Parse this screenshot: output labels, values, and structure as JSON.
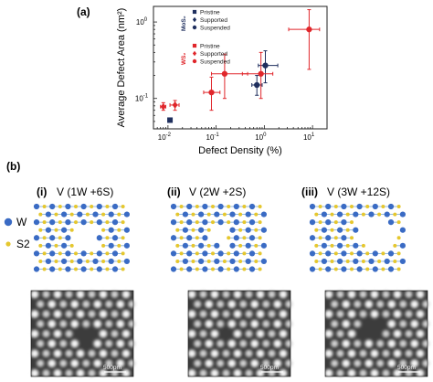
{
  "panel_a": {
    "label": "(a)",
    "chart_data": {
      "type": "scatter",
      "title": "",
      "xlabel": "Defect Density (%)",
      "ylabel": "Average Defect Area (nm²)",
      "xscale": "log",
      "yscale": "log",
      "xlim": [
        0.005,
        20
      ],
      "ylim": [
        0.04,
        1.6
      ],
      "x_ticks": [
        {
          "v": 0.01,
          "b": "10",
          "e": "-2"
        },
        {
          "v": 0.1,
          "b": "10",
          "e": "-1"
        },
        {
          "v": 1,
          "b": "10",
          "e": "0"
        },
        {
          "v": 10,
          "b": "10",
          "e": "1"
        }
      ],
      "y_ticks": [
        {
          "v": 0.1,
          "b": "10",
          "e": "-1"
        },
        {
          "v": 1,
          "b": "10",
          "e": "0"
        }
      ],
      "legend_groups": [
        {
          "material": "MoS₂",
          "color": "#1f2f5e",
          "entries": [
            {
              "label": "Pristine",
              "marker": "square"
            },
            {
              "label": "Supported",
              "marker": "diamond"
            },
            {
              "label": "Suspended",
              "marker": "circle"
            }
          ]
        },
        {
          "material": "WS₂",
          "color": "#e0262b",
          "entries": [
            {
              "label": "Pristine",
              "marker": "square"
            },
            {
              "label": "Supported",
              "marker": "diamond"
            },
            {
              "label": "Suspended",
              "marker": "circle"
            }
          ]
        }
      ],
      "series": [
        {
          "name": "MoS₂ Pristine",
          "color": "#1f2f5e",
          "marker": "square",
          "points": [
            {
              "x": 0.011,
              "y": 0.052
            }
          ]
        },
        {
          "name": "MoS₂ Suspended",
          "color": "#1f2f5e",
          "marker": "circle",
          "points": [
            {
              "x": 0.7,
              "y": 0.15,
              "xerr": [
                0.55,
                0.9
              ],
              "yerr": [
                0.11,
                0.2
              ]
            },
            {
              "x": 1.05,
              "y": 0.27,
              "xerr": [
                0.75,
                1.9
              ],
              "yerr": [
                0.16,
                0.42
              ]
            }
          ]
        },
        {
          "name": "WS₂ Supported",
          "color": "#e0262b",
          "marker": "diamond",
          "points": [
            {
              "x": 0.008,
              "y": 0.078,
              "xerr": [
                0.007,
                0.009
              ],
              "yerr": [
                0.07,
                0.088
              ]
            },
            {
              "x": 0.014,
              "y": 0.082,
              "xerr": [
                0.011,
                0.017
              ],
              "yerr": [
                0.07,
                0.094
              ]
            }
          ]
        },
        {
          "name": "WS₂ Suspended",
          "color": "#e0262b",
          "marker": "circle",
          "points": [
            {
              "x": 0.08,
              "y": 0.12,
              "xerr": [
                0.055,
                0.12
              ],
              "yerr": [
                0.07,
                0.19
              ]
            },
            {
              "x": 0.15,
              "y": 0.21,
              "xerr": [
                0.08,
                0.45
              ],
              "yerr": [
                0.1,
                0.38
              ]
            },
            {
              "x": 0.85,
              "y": 0.21,
              "xerr": [
                0.35,
                1.5
              ],
              "yerr": [
                0.1,
                0.4
              ]
            },
            {
              "x": 8.5,
              "y": 0.8,
              "xerr": [
                3.2,
                14
              ],
              "yerr": [
                0.24,
                1.45
              ]
            }
          ]
        }
      ]
    }
  },
  "panel_b": {
    "label": "(b)",
    "legend": [
      {
        "label": "W",
        "color": "#3a6bc4"
      },
      {
        "label": "S2",
        "color": "#e5c72e"
      }
    ],
    "structures": [
      {
        "roman": "(i)",
        "title": "V (1W +6S)",
        "scale_bar": "500pm"
      },
      {
        "roman": "(ii)",
        "title": "V (2W +2S)",
        "scale_bar": "500pm"
      },
      {
        "roman": "(iii)",
        "title": "V (3W +12S)",
        "scale_bar": "500pm"
      }
    ]
  }
}
